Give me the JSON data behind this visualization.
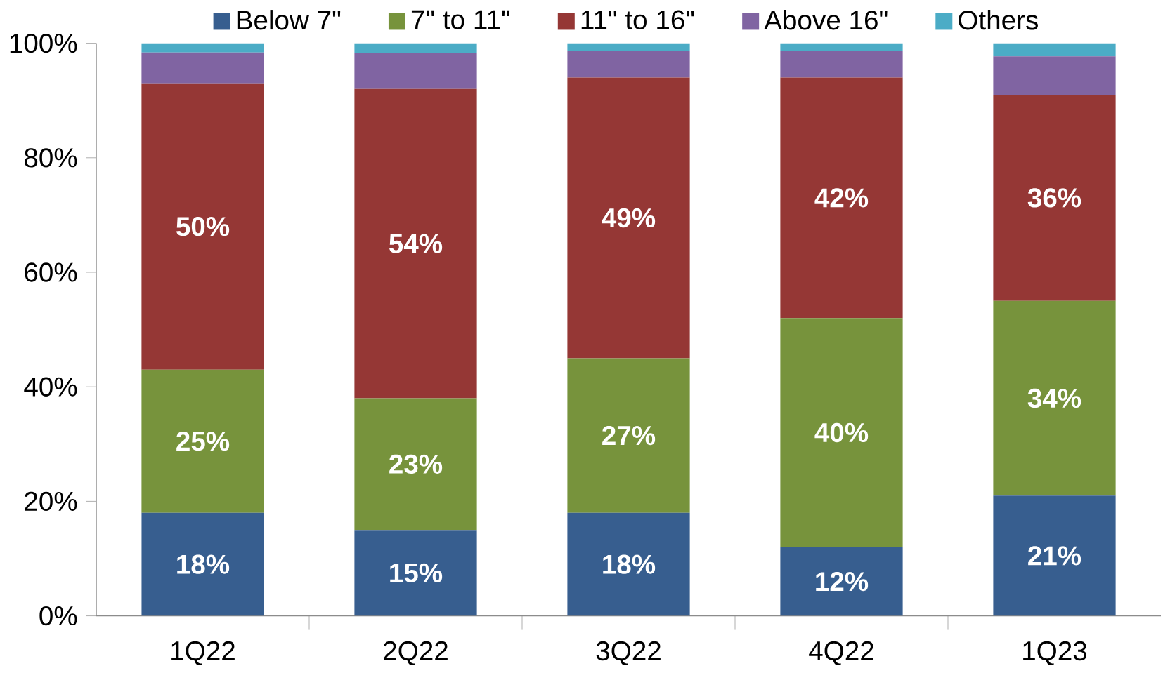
{
  "chart_data": {
    "type": "bar",
    "stacked": true,
    "categories": [
      "1Q22",
      "2Q22",
      "3Q22",
      "4Q22",
      "1Q23"
    ],
    "series": [
      {
        "name": "Below 7\"",
        "color": "#375e8f",
        "values": [
          18,
          15,
          18,
          12,
          21
        ],
        "value_labels": [
          "18%",
          "15%",
          "18%",
          "12%",
          "21%"
        ]
      },
      {
        "name": "7\" to 11\"",
        "color": "#77933c",
        "values": [
          25,
          23,
          27,
          40,
          34
        ],
        "value_labels": [
          "25%",
          "23%",
          "27%",
          "40%",
          "34%"
        ]
      },
      {
        "name": "11\" to 16\"",
        "color": "#953735",
        "values": [
          50,
          54,
          49,
          42,
          36
        ],
        "value_labels": [
          "50%",
          "54%",
          "49%",
          "42%",
          "36%"
        ]
      },
      {
        "name": "Above 16\"",
        "color": "#8064a2",
        "values": [
          5.4,
          6.3,
          4.6,
          4.6,
          6.7
        ]
      },
      {
        "name": "Others",
        "color": "#4bacc6",
        "values": [
          1.6,
          1.7,
          1.4,
          1.4,
          2.3
        ]
      }
    ],
    "ylim": [
      0,
      100
    ],
    "yticks": [
      {
        "value": 0,
        "label": "0%"
      },
      {
        "value": 20,
        "label": "20%"
      },
      {
        "value": 40,
        "label": "40%"
      },
      {
        "value": 60,
        "label": "60%"
      },
      {
        "value": 80,
        "label": "80%"
      },
      {
        "value": 100,
        "label": "100%"
      }
    ],
    "legend": "top",
    "grid": false
  }
}
